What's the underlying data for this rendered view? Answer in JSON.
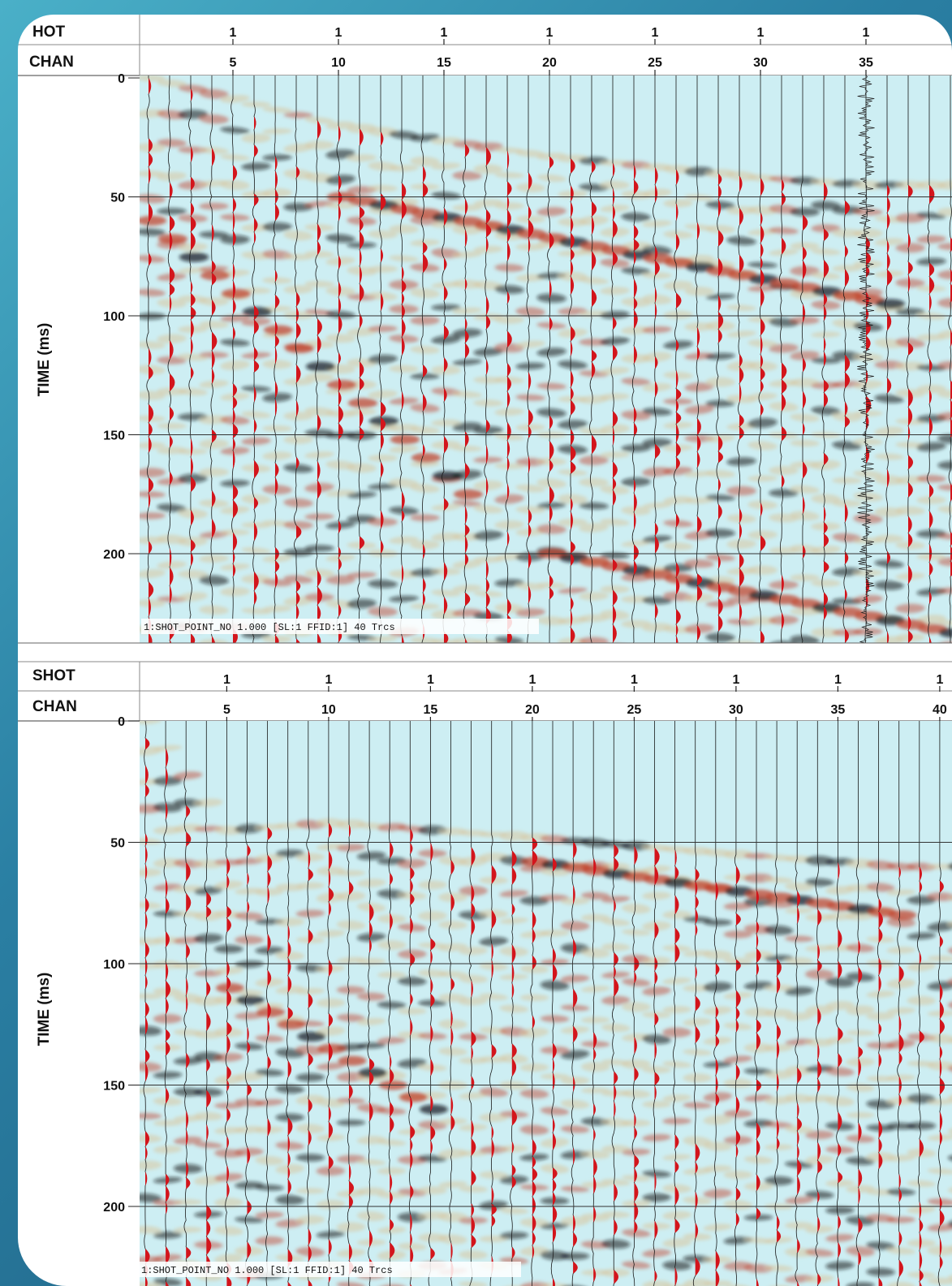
{
  "colors": {
    "background_gradient": [
      "#4ab0c8",
      "#1b5576"
    ],
    "panel_bg": "#cdeef3",
    "wiggle_fill": "#d3151c",
    "band_tan": "#d9c7a0",
    "band_red": "#c23a22",
    "band_dark": "#101418",
    "grid": "#333333"
  },
  "chart_data": [
    {
      "type": "seismic-gather",
      "header_rows": [
        "SHOT",
        "CHAN"
      ],
      "header_row_label_displayed": [
        "HOT",
        "CHAN"
      ],
      "shot_labels": [
        "1",
        "1",
        "1",
        "1",
        "1",
        "1",
        "1"
      ],
      "chan_ticks": [
        5,
        10,
        15,
        20,
        25,
        30,
        35
      ],
      "ylabel": "TIME (ms)",
      "yticks": [
        0,
        50,
        100,
        150,
        200
      ],
      "ylim": [
        0,
        240
      ],
      "traces_visible": 40,
      "caption": "1:SHOT_POINT_NO 1.000 [SL:1 FFID:1] 40 Trcs",
      "noisy_channel": 35,
      "first_break_ms_at_chan": [
        [
          1,
          0
        ],
        [
          10,
          20
        ],
        [
          20,
          33
        ],
        [
          30,
          42
        ],
        [
          35,
          45
        ]
      ],
      "reflection_events": [
        {
          "from_chan": 1,
          "to_chan": 16,
          "t0_ms": 60,
          "t1_ms": 175
        },
        {
          "from_chan": 10,
          "to_chan": 36,
          "t0_ms": 50,
          "t1_ms": 95
        },
        {
          "from_chan": 20,
          "to_chan": 40,
          "t0_ms": 200,
          "t1_ms": 235
        }
      ]
    },
    {
      "type": "seismic-gather",
      "header_rows": [
        "SHOT",
        "CHAN"
      ],
      "shot_labels": [
        "1",
        "1",
        "1",
        "1",
        "1",
        "1",
        "1",
        "1"
      ],
      "chan_ticks": [
        5,
        10,
        15,
        20,
        25,
        30,
        35,
        40
      ],
      "chan_tick_labels_displayed": [
        "5",
        "10",
        "15",
        "20",
        "25",
        "30",
        "35",
        "40"
      ],
      "ylabel": "TIME (ms)",
      "yticks": [
        0,
        50,
        100,
        150,
        200
      ],
      "ylim": [
        0,
        225
      ],
      "traces_visible": 40,
      "caption": "1:SHOT_POINT_NO 1.000 [SL:1 FFID:1] 40 Trcs",
      "first_break_ms_at_chan": [
        [
          1,
          0
        ],
        [
          5,
          45
        ],
        [
          10,
          42
        ],
        [
          20,
          48
        ],
        [
          30,
          55
        ],
        [
          38,
          60
        ]
      ],
      "reflection_events": [
        {
          "from_chan": 20,
          "to_chan": 38,
          "t0_ms": 58,
          "t1_ms": 80
        },
        {
          "from_chan": 5,
          "to_chan": 15,
          "t0_ms": 110,
          "t1_ms": 160
        }
      ]
    }
  ]
}
